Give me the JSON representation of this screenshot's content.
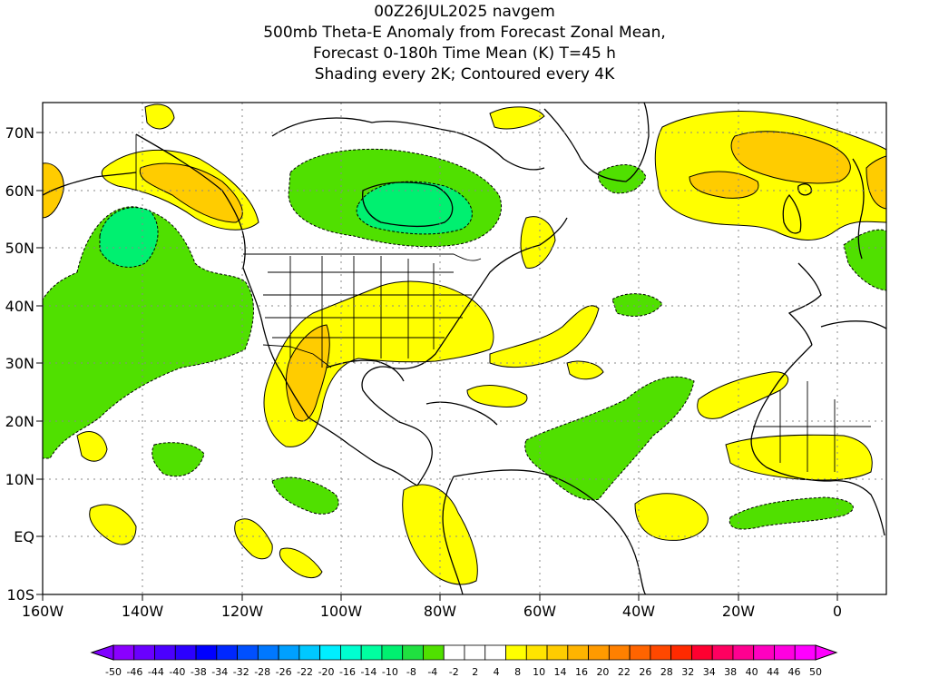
{
  "title_lines": [
    "00Z26JUL2025 navgem",
    "500mb Theta-E Anomaly from Forecast Zonal Mean,",
    "Forecast 0-180h Time Mean (K) T=45 h",
    "Shading every 2K; Contoured every 4K"
  ],
  "map": {
    "lat_labels": [
      "70N",
      "60N",
      "50N",
      "40N",
      "30N",
      "20N",
      "10N",
      "EQ",
      "10S"
    ],
    "lon_labels": [
      "160W",
      "140W",
      "120W",
      "100W",
      "80W",
      "60W",
      "40W",
      "20W",
      "0"
    ],
    "extent": {
      "lon_min": -160,
      "lon_max": 10,
      "lat_min": -10,
      "lat_max": 75
    }
  },
  "colorbar": {
    "labels": [
      "-50",
      "-46",
      "-44",
      "-40",
      "-38",
      "-34",
      "-32",
      "-28",
      "-26",
      "-22",
      "-20",
      "-16",
      "-14",
      "-10",
      "-8",
      "-4",
      "-2",
      "2",
      "4",
      "8",
      "10",
      "14",
      "16",
      "20",
      "22",
      "26",
      "28",
      "32",
      "34",
      "38",
      "40",
      "44",
      "46",
      "50"
    ],
    "colors": [
      "#8a00ff",
      "#6a00ff",
      "#4b00ff",
      "#2c00ff",
      "#0000ff",
      "#0028ff",
      "#0050ff",
      "#0078ff",
      "#00a0ff",
      "#00c8ff",
      "#00eeff",
      "#00ffd0",
      "#00ffa0",
      "#00f070",
      "#20e040",
      "#50e000",
      "#ffffff",
      "#ffffff",
      "#ffffff",
      "#ffff00",
      "#ffe400",
      "#ffcc00",
      "#ffb400",
      "#ff9a00",
      "#ff8000",
      "#ff6400",
      "#ff4800",
      "#ff2a00",
      "#ff0030",
      "#ff0060",
      "#ff0090",
      "#ff00c0",
      "#ff00e0",
      "#ff00ff"
    ],
    "left_arrow_color": "#8000ff",
    "right_arrow_color": "#ff00ff"
  }
}
